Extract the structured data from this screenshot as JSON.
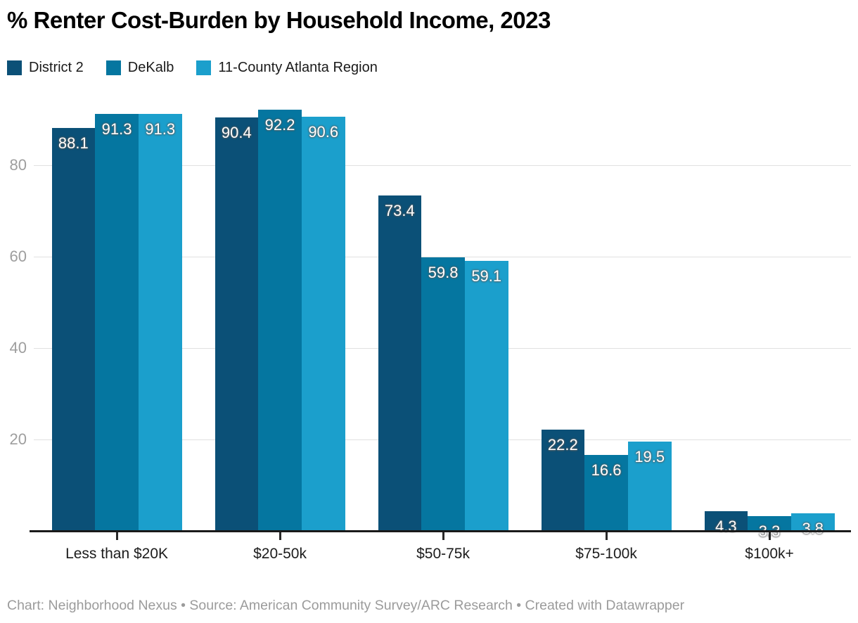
{
  "title": "% Renter Cost-Burden by Household Income, 2023",
  "footer": "Chart: Neighborhood Nexus • Source: American Community Survey/ARC Research • Created with Datawrapper",
  "colors": {
    "district2": "#0b5077",
    "dekalb": "#0576a0",
    "region": "#1b9fcc",
    "gridline": "#e0e0e0",
    "axis_line": "#1a1a1a",
    "ytick_text": "#9e9e9e",
    "category_text": "#1c1c1c",
    "footer_text": "#9b9b9b"
  },
  "legend": {
    "items": [
      {
        "label": "District 2",
        "color": "#0b5077"
      },
      {
        "label": "DeKalb",
        "color": "#0576a0"
      },
      {
        "label": "11-County Atlanta Region",
        "color": "#1b9fcc"
      }
    ]
  },
  "chart_data": {
    "type": "bar",
    "title": "% Renter Cost-Burden by Household Income, 2023",
    "categories": [
      "Less than $20K",
      "$20-50k",
      "$50-75k",
      "$75-100k",
      "$100k+"
    ],
    "series": [
      {
        "name": "District 2",
        "color": "#0b5077",
        "values": [
          88.1,
          90.4,
          73.4,
          22.2,
          4.3
        ]
      },
      {
        "name": "DeKalb",
        "color": "#0576a0",
        "values": [
          91.3,
          92.2,
          59.8,
          16.6,
          3.3
        ]
      },
      {
        "name": "11-County Atlanta Region",
        "color": "#1b9fcc",
        "values": [
          91.3,
          90.6,
          59.1,
          19.5,
          3.8
        ]
      }
    ],
    "xlabel": "",
    "ylabel": "",
    "ylim": [
      0,
      94
    ],
    "yticks": [
      20,
      40,
      60,
      80
    ],
    "grid": true,
    "legend_position": "top",
    "value_labels": true
  }
}
